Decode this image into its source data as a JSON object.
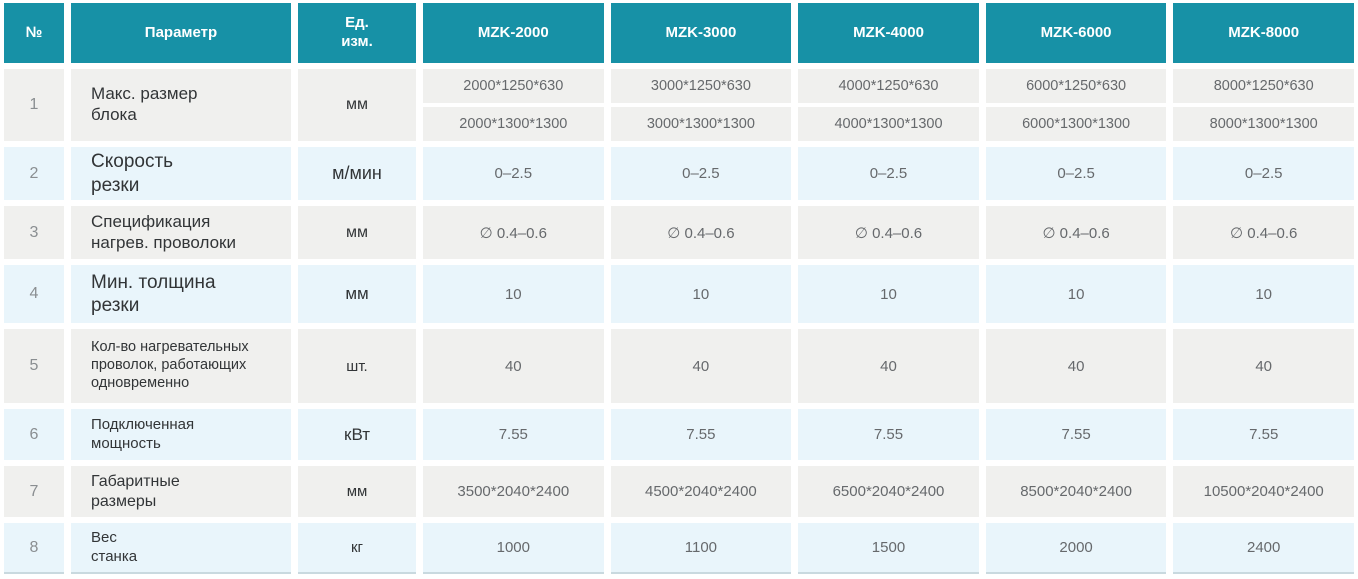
{
  "colors": {
    "header_bg": "#1791a6",
    "row_gray": "#f0f0ee",
    "row_blue": "#e9f5fb",
    "header_text": "#ffffff",
    "value_text": "#66696c",
    "param_text": "#323537",
    "num_text": "#8a8e91"
  },
  "table": {
    "columns": [
      {
        "key": "num",
        "label": "№"
      },
      {
        "key": "param",
        "label": "Параметр"
      },
      {
        "key": "unit",
        "label": "Ед.\nизм."
      },
      {
        "key": "mzk2000",
        "label": "MZK-2000"
      },
      {
        "key": "mzk3000",
        "label": "MZK-3000"
      },
      {
        "key": "mzk4000",
        "label": "MZK-4000"
      },
      {
        "key": "mzk6000",
        "label": "MZK-6000"
      },
      {
        "key": "mzk8000",
        "label": "MZK-8000"
      }
    ],
    "rows": [
      {
        "num": "1",
        "param": "Макс. размер\nблока",
        "unit": "мм",
        "values": [
          [
            "2000*1250*630",
            "2000*1300*1300"
          ],
          [
            "3000*1250*630",
            "3000*1300*1300"
          ],
          [
            "4000*1250*630",
            "4000*1300*1300"
          ],
          [
            "6000*1250*630",
            "6000*1300*1300"
          ],
          [
            "8000*1250*630",
            "8000*1300*1300"
          ]
        ]
      },
      {
        "num": "2",
        "param": "Скорость\nрезки",
        "unit": "м/мин",
        "values": [
          "0–2.5",
          "0–2.5",
          "0–2.5",
          "0–2.5",
          "0–2.5"
        ]
      },
      {
        "num": "3",
        "param": "Спецификация\nнагрев. проволоки",
        "unit": "мм",
        "values": [
          "∅ 0.4–0.6",
          "∅ 0.4–0.6",
          "∅ 0.4–0.6",
          "∅ 0.4–0.6",
          "∅ 0.4–0.6"
        ]
      },
      {
        "num": "4",
        "param": "Мин. толщина\nрезки",
        "unit": "мм",
        "values": [
          "10",
          "10",
          "10",
          "10",
          "10"
        ]
      },
      {
        "num": "5",
        "param": "Кол-во нагревательных\nпроволок, работающих\nодновременно",
        "unit": "шт.",
        "values": [
          "40",
          "40",
          "40",
          "40",
          "40"
        ]
      },
      {
        "num": "6",
        "param": "Подключенная\nмощность",
        "unit": "кВт",
        "values": [
          "7.55",
          "7.55",
          "7.55",
          "7.55",
          "7.55"
        ]
      },
      {
        "num": "7",
        "param": "Габаритные\nразмеры",
        "unit": "мм",
        "values": [
          "3500*2040*2400",
          "4500*2040*2400",
          "6500*2040*2400",
          "8500*2040*2400",
          "10500*2040*2400"
        ]
      },
      {
        "num": "8",
        "param": "Вес\nстанка",
        "unit": "кг",
        "values": [
          "1000",
          "1100",
          "1500",
          "2000",
          "2400"
        ]
      }
    ]
  }
}
